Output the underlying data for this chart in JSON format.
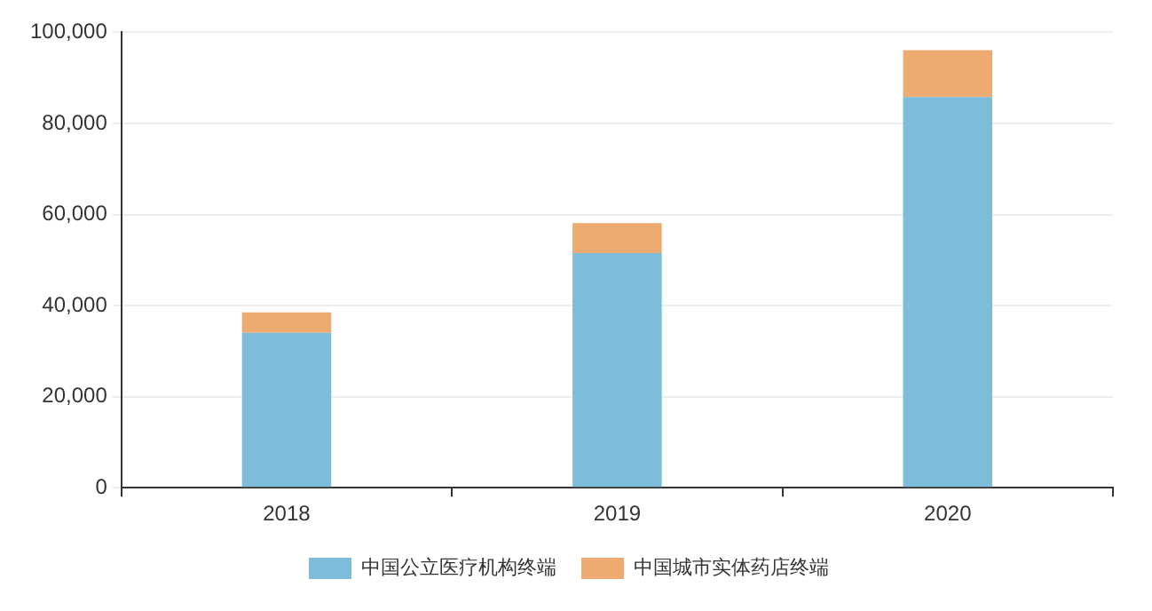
{
  "chart_data": {
    "type": "bar",
    "stacked": true,
    "categories": [
      "2018",
      "2019",
      "2020"
    ],
    "series": [
      {
        "name": "中国公立医疗机构终端",
        "color": "#7ebdd9",
        "values": [
          34000,
          51500,
          85800
        ]
      },
      {
        "name": "中国城市实体药店终端",
        "color": "#edab72",
        "values": [
          4500,
          6600,
          10300
        ]
      }
    ],
    "ylim": [
      0,
      100000
    ],
    "yticks": [
      0,
      {
        "value": 20000,
        "label": "20,000"
      },
      {
        "value": 40000,
        "label": "40,000"
      },
      {
        "value": 60000,
        "label": "60,000"
      },
      {
        "value": 80000,
        "label": "80,000"
      },
      {
        "value": 100000,
        "label": "100,000"
      }
    ],
    "grid": "y",
    "legend": "bottom"
  }
}
